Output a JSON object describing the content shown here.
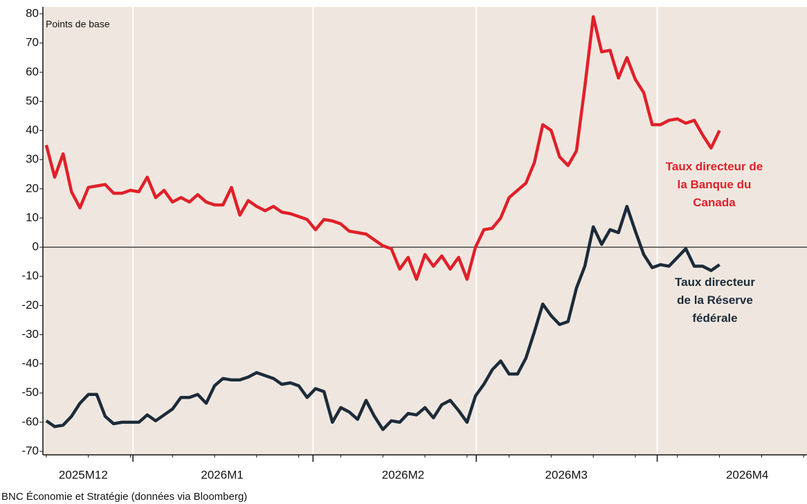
{
  "chart_data": {
    "type": "line",
    "y_label": "Points de base",
    "source": "BNC Économie et Stratégie (données via Bloomberg)",
    "ylim": [
      -70,
      80
    ],
    "yticks": [
      -70,
      -60,
      -50,
      -40,
      -30,
      -20,
      -10,
      0,
      10,
      20,
      30,
      40,
      50,
      60,
      70,
      80
    ],
    "xlim": [
      -0.4,
      90.4
    ],
    "xticks": [
      {
        "value": 4.4,
        "label": "2025M12"
      },
      {
        "value": 20.9,
        "label": "2026M1"
      },
      {
        "value": 42.4,
        "label": "2026M2"
      },
      {
        "value": 61.8,
        "label": "2026M3"
      },
      {
        "value": 83.3,
        "label": "2026M4"
      }
    ],
    "xgrid": [
      10.3,
      31.7,
      51.1,
      72.6
    ],
    "series": [
      {
        "name": "Taux directeur de la Banque du Canada",
        "color": "#e0202a",
        "values": [
          35,
          24,
          32,
          19,
          13.5,
          20.5,
          21,
          21.5,
          18.5,
          18.5,
          19.5,
          19,
          24,
          17,
          19.5,
          15.5,
          17,
          15.5,
          18,
          15.5,
          14.5,
          14.5,
          20.5,
          11,
          16,
          14,
          12.5,
          14,
          12,
          11.5,
          10.5,
          9.5,
          6,
          9.5,
          9,
          8,
          5.5,
          5,
          4.5,
          2.5,
          0.5,
          -0.5,
          -7.5,
          -3.5,
          -11,
          -2.5,
          -6.5,
          -3,
          -7.5,
          -3.5,
          -11,
          0,
          6,
          6.5,
          10,
          17,
          19.5,
          22,
          29,
          42,
          40,
          31,
          28,
          33,
          55,
          79,
          67,
          67.5,
          58,
          65,
          57.5,
          53,
          42,
          42,
          43.5,
          44,
          42.5,
          43.5,
          38.5,
          34,
          40
        ]
      },
      {
        "name": "Taux directeur de la Réserve fédérale",
        "color": "#1c2b3a",
        "values": [
          -59.5,
          -61.5,
          -61,
          -58,
          -53.5,
          -50.5,
          -50.5,
          -58,
          -60.5,
          -60,
          -60,
          -60,
          -57.5,
          -59.5,
          -57.5,
          -55.5,
          -51.5,
          -51.5,
          -50.5,
          -53.5,
          -47.5,
          -45,
          -45.5,
          -45.5,
          -44.5,
          -43,
          -44,
          -45,
          -47,
          -46.5,
          -47.5,
          -51.5,
          -48.5,
          -49.5,
          -60,
          -55,
          -56.5,
          -59,
          -52.5,
          -58,
          -62.5,
          -59.5,
          -60,
          -57,
          -57.5,
          -55,
          -58.5,
          -54,
          -52.5,
          -56,
          -60,
          -51,
          -47,
          -42,
          -39,
          -43.5,
          -43.5,
          -38,
          -29,
          -19.5,
          -23.5,
          -26.5,
          -25.5,
          -14,
          -6.5,
          7,
          1,
          6,
          5,
          14,
          5.5,
          -2.5,
          -7,
          -6,
          -6.5,
          -3.5,
          -0.5,
          -6.5,
          -6.5,
          -8,
          -6
        ]
      }
    ]
  }
}
